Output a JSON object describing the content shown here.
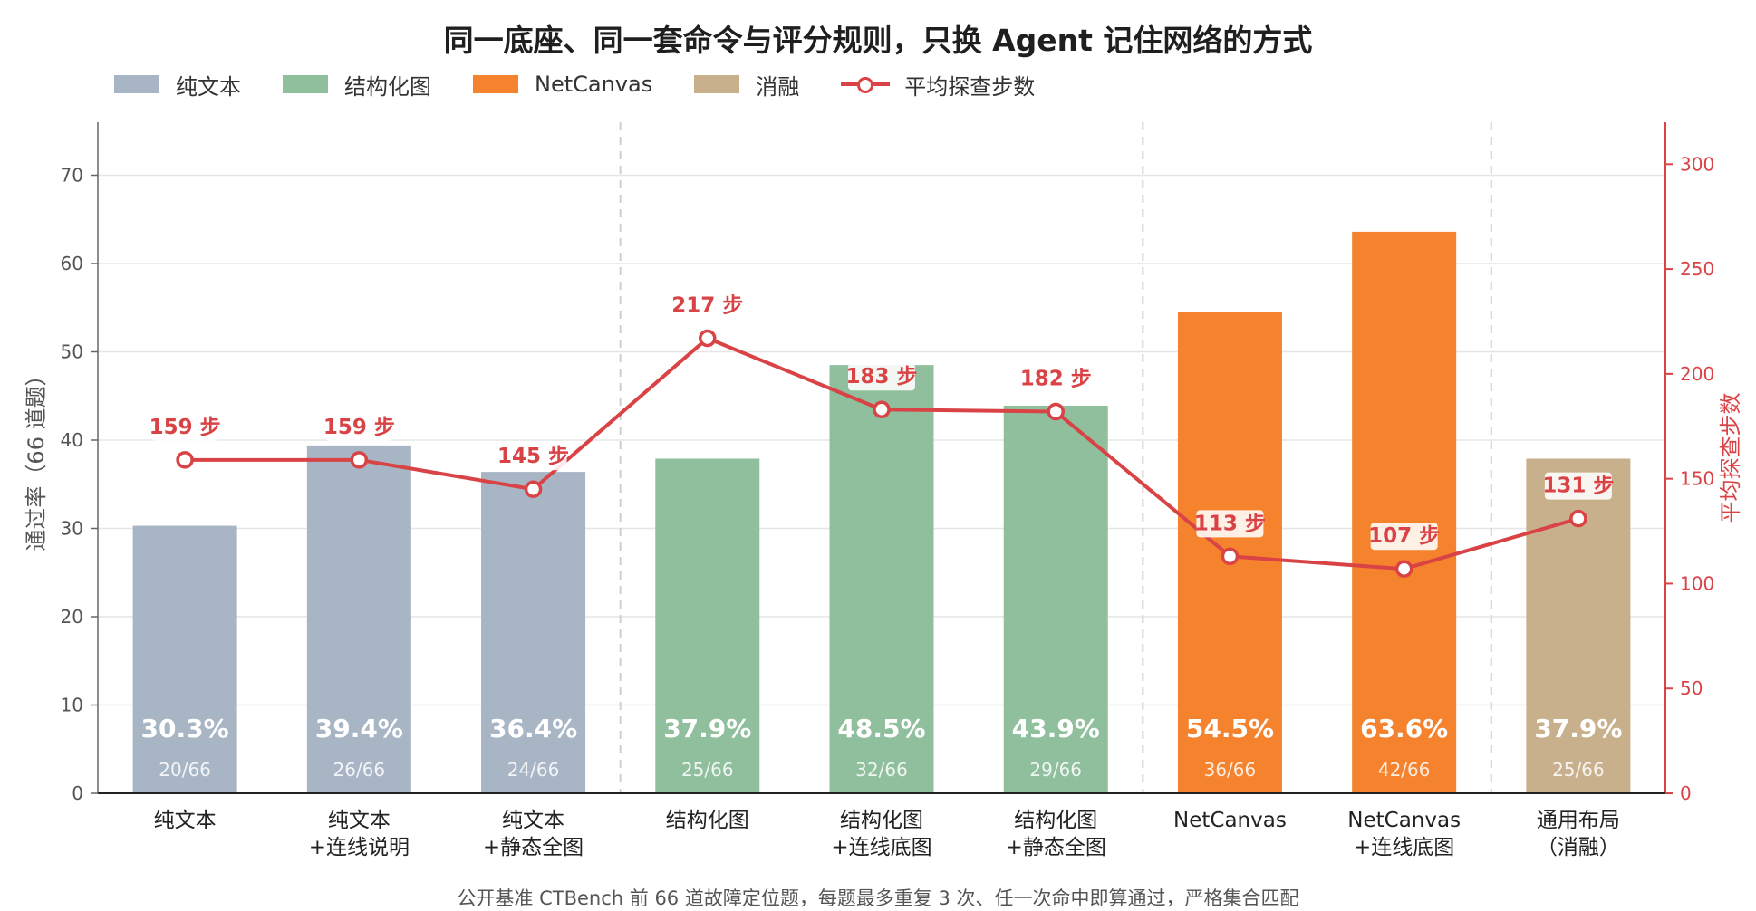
{
  "title": "同一底座、同一套命令与评分规则，只换 Agent 记住网络的方式",
  "footnote": "公开基准 CTBench 前 66 道故障定位题，每题最多重复 3 次、任一次命中即算通过，严格集合匹配",
  "colors": {
    "plain_text": "#a8b5c5",
    "structured": "#90bf9d",
    "netcanvas": "#f5822d",
    "ablation": "#c9b08c",
    "line": "#d94345"
  },
  "legend": [
    {
      "label": "纯文本",
      "kind": "swatch",
      "color_key": "plain_text"
    },
    {
      "label": "结构化图",
      "kind": "swatch",
      "color_key": "structured"
    },
    {
      "label": "NetCanvas",
      "kind": "swatch",
      "color_key": "netcanvas"
    },
    {
      "label": "消融",
      "kind": "swatch",
      "color_key": "ablation"
    },
    {
      "label": "平均探查步数",
      "kind": "line",
      "color_key": "line"
    }
  ],
  "chart_data": {
    "type": "bar",
    "title": "同一底座、同一套命令与评分规则，只换 Agent 记住网络的方式",
    "ylabel": "通过率（66 道题）",
    "y2label": "平均探查步数",
    "ylim": [
      0,
      76
    ],
    "yticks": [
      0,
      10,
      20,
      30,
      40,
      50,
      60,
      70
    ],
    "y2lim": [
      0,
      320
    ],
    "y2ticks": [
      0,
      50,
      100,
      150,
      200,
      250,
      300
    ],
    "categories": [
      [
        "纯文本"
      ],
      [
        "纯文本",
        "+连线说明"
      ],
      [
        "纯文本",
        "+静态全图"
      ],
      [
        "结构化图"
      ],
      [
        "结构化图",
        "+连线底图"
      ],
      [
        "结构化图",
        "+静态全图"
      ],
      [
        "NetCanvas"
      ],
      [
        "NetCanvas",
        "+连线底图"
      ],
      [
        "通用布局",
        "（消融）"
      ]
    ],
    "groups": [
      "plain_text",
      "plain_text",
      "plain_text",
      "structured",
      "structured",
      "structured",
      "netcanvas",
      "netcanvas",
      "ablation"
    ],
    "group_separators_after": [
      2,
      5,
      7
    ],
    "series": [
      {
        "name": "通过率",
        "axis": "left",
        "values": [
          30.3,
          39.4,
          36.4,
          37.9,
          48.5,
          43.9,
          54.5,
          63.6,
          37.9
        ],
        "value_labels": [
          "30.3%",
          "39.4%",
          "36.4%",
          "37.9%",
          "48.5%",
          "43.9%",
          "54.5%",
          "63.6%",
          "37.9%"
        ],
        "count_labels": [
          "20/66",
          "26/66",
          "24/66",
          "25/66",
          "32/66",
          "29/66",
          "36/66",
          "42/66",
          "25/66"
        ]
      },
      {
        "name": "平均探查步数",
        "axis": "right",
        "type": "line",
        "values": [
          159,
          159,
          145,
          217,
          183,
          182,
          113,
          107,
          131
        ],
        "value_labels": [
          "159 步",
          "159 步",
          "145 步",
          "217 步",
          "183 步",
          "182 步",
          "113 步",
          "107 步",
          "131 步"
        ]
      }
    ],
    "grid": true,
    "legend_position": "top-left"
  }
}
